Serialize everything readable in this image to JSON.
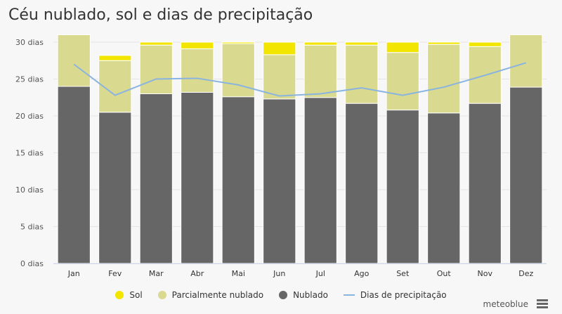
{
  "title": "Céu nublado, sol e dias de precipitação",
  "credits": "meteoblue",
  "colors": {
    "sun": "#f2e600",
    "partly": "#d9d98f",
    "cloudy": "#666666",
    "precip": "#8ab4e0",
    "grid": "#e4e4e4"
  },
  "legend": [
    {
      "label": "Sol",
      "color": "#f2e600",
      "kind": "dot"
    },
    {
      "label": "Parcialmente nublado",
      "color": "#d9d98f",
      "kind": "dot"
    },
    {
      "label": "Nublado",
      "color": "#666666",
      "kind": "dot"
    },
    {
      "label": "Dias de precipitação",
      "color": "#8ab4e0",
      "kind": "line"
    }
  ],
  "chart_data": {
    "type": "bar",
    "stacked": true,
    "categories": [
      "Jan",
      "Fev",
      "Mar",
      "Abr",
      "Mai",
      "Jun",
      "Jul",
      "Ago",
      "Set",
      "Out",
      "Nov",
      "Dez"
    ],
    "y_tick_labels": [
      "0 dias",
      "5 dias",
      "10 dias",
      "15 dias",
      "20 dias",
      "25 dias",
      "30 dias"
    ],
    "ylim": [
      0,
      30
    ],
    "grid": true,
    "legend_position": "bottom",
    "series": [
      {
        "name": "Nublado",
        "values": [
          24,
          20.5,
          23,
          23.2,
          22.6,
          22.3,
          22.5,
          21.7,
          20.8,
          20.4,
          21.7,
          23.9
        ]
      },
      {
        "name": "Parcialmente nublado",
        "values": [
          7,
          7,
          6.6,
          5.9,
          7.2,
          6,
          7.1,
          7.9,
          7.8,
          9.3,
          7.7,
          7.1
        ]
      },
      {
        "name": "Sol",
        "values": [
          0,
          0.7,
          0.4,
          0.9,
          0.2,
          1.7,
          0.4,
          0.4,
          1.4,
          0.3,
          0.6,
          0
        ]
      }
    ],
    "line_series": {
      "name": "Dias de precipitação",
      "values": [
        27,
        22.8,
        25,
        25.1,
        24.2,
        22.7,
        23,
        23.8,
        22.8,
        23.9,
        25.5,
        27.2
      ]
    }
  }
}
